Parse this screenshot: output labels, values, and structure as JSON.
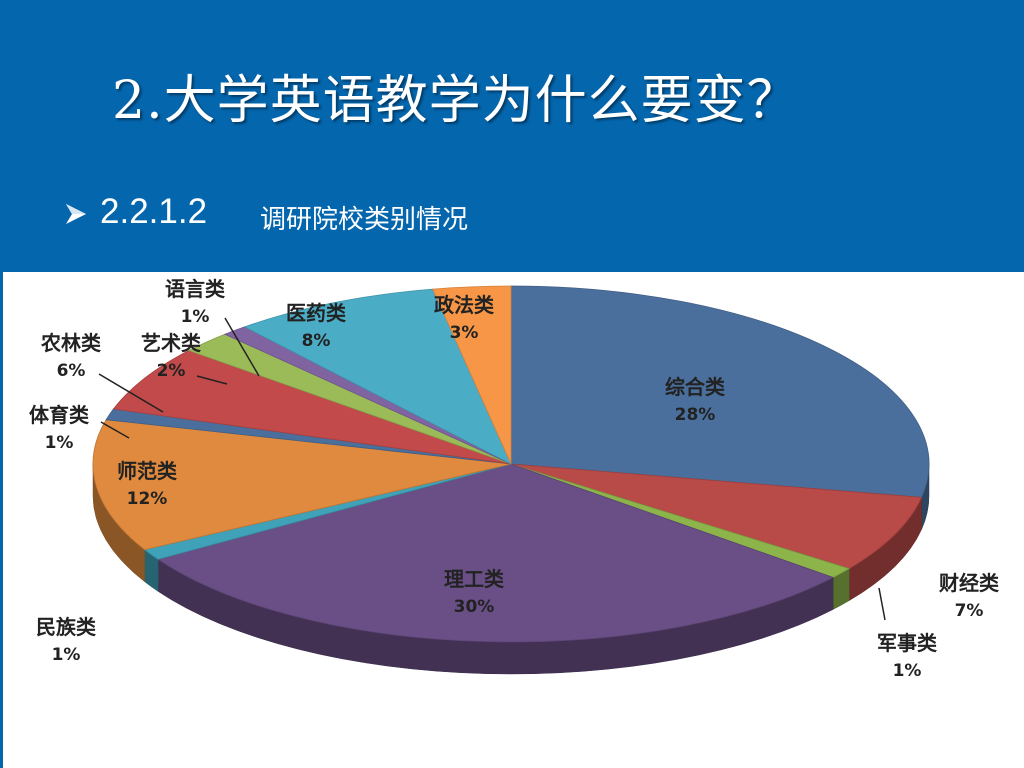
{
  "slide": {
    "title": "2.大学英语教学为什么要变？",
    "bullet_number": "2.2.1.2",
    "bullet_text": "调研院校类别情况",
    "header_color": "#0466ad"
  },
  "chart_data": {
    "type": "pie",
    "style": "3d-exploded",
    "title": "",
    "slices": [
      {
        "label": "综合类",
        "value": 28,
        "display": "28%",
        "color": "#4a6f9c"
      },
      {
        "label": "财经类",
        "value": 7,
        "display": "7%",
        "color": "#b84a48"
      },
      {
        "label": "军事类",
        "value": 1,
        "display": "1%",
        "color": "#8cb44a"
      },
      {
        "label": "理工类",
        "value": 30,
        "display": "30%",
        "color": "#6a4f86"
      },
      {
        "label": "民族类",
        "value": 1,
        "display": "1%",
        "color": "#3fa2b8"
      },
      {
        "label": "师范类",
        "value": 12,
        "display": "12%",
        "color": "#df8a3e"
      },
      {
        "label": "体育类",
        "value": 1,
        "display": "1%",
        "color": "#4a6f9c"
      },
      {
        "label": "农林类",
        "value": 6,
        "display": "6%",
        "color": "#c24a4a"
      },
      {
        "label": "艺术类",
        "value": 2,
        "display": "2%",
        "color": "#9bbb59"
      },
      {
        "label": "语言类",
        "value": 1,
        "display": "1%",
        "color": "#8064a2"
      },
      {
        "label": "医药类",
        "value": 8,
        "display": "8%",
        "color": "#4bacc6"
      },
      {
        "label": "政法类",
        "value": 3,
        "display": "3%",
        "color": "#f79646"
      }
    ]
  }
}
